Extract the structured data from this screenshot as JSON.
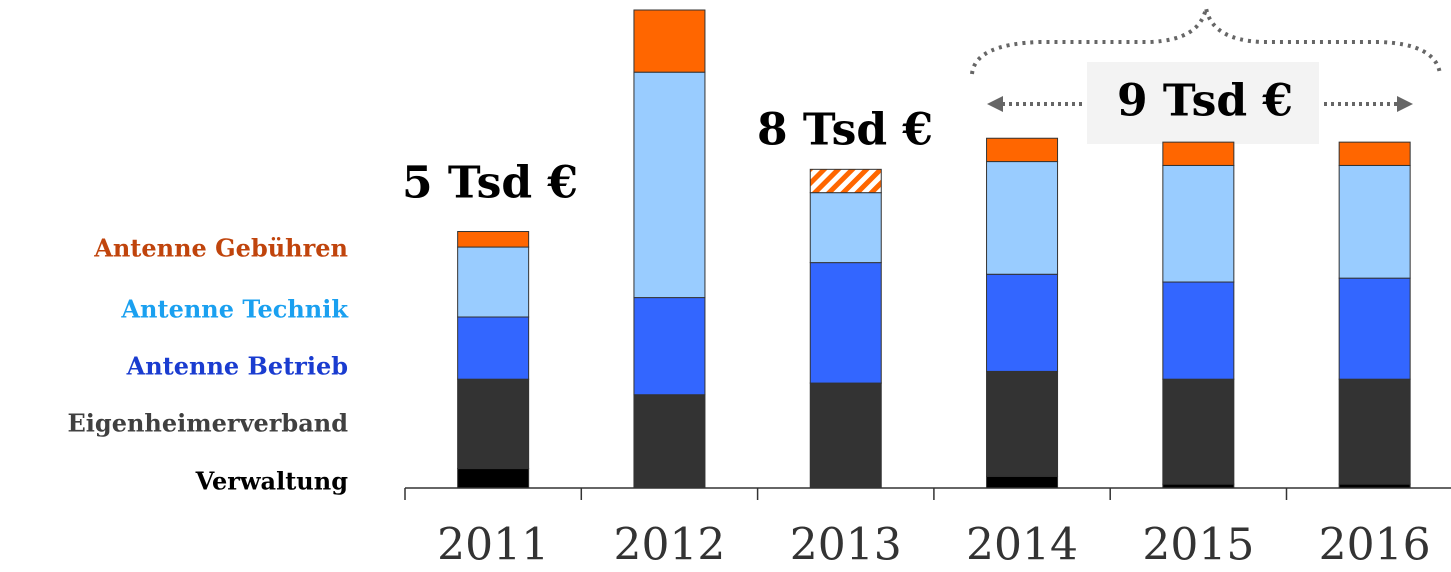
{
  "chart_data": {
    "type": "stacked_bar",
    "categories": [
      "2011",
      "2012",
      "2013",
      "2014",
      "2015",
      "2016"
    ],
    "series": [
      {
        "name": "Verwaltung",
        "color": "#000000",
        "legend_color": "#000000",
        "values": [
          0.5,
          0,
          0,
          0.3,
          0.1,
          0.1
        ]
      },
      {
        "name": "Eigenheimerverband",
        "color": "#333333",
        "legend_color": "#404040",
        "values": [
          2.3,
          2.4,
          2.7,
          2.7,
          2.7,
          2.7
        ]
      },
      {
        "name": "Antenne Betrieb",
        "color": "#3366ff",
        "legend_color": "#1a3cd0",
        "values": [
          1.6,
          2.5,
          3.1,
          2.5,
          2.5,
          2.6
        ]
      },
      {
        "name": "Antenne Technik",
        "color": "#99ccff",
        "legend_color": "#1aa0f0",
        "values": [
          1.8,
          5.8,
          1.8,
          2.9,
          3.0,
          2.9
        ]
      },
      {
        "name": "Antenne Gebühren",
        "color": "#ff6600",
        "legend_color": "#c0440c",
        "values": [
          0.4,
          1.6,
          0.6,
          0.6,
          0.6,
          0.6
        ],
        "hatched": [
          2
        ]
      }
    ],
    "annotations": [
      "5 Tsd €",
      "8 Tsd €",
      "9 Tsd €"
    ]
  }
}
